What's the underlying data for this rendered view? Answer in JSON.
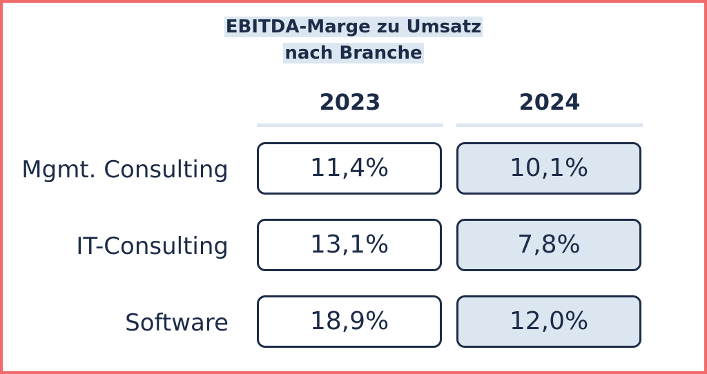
{
  "chart_data": {
    "type": "table",
    "title_lines": [
      "EBITDA-Marge zu Umsatz",
      "nach Branche"
    ],
    "columns": [
      "2023",
      "2024"
    ],
    "rows": [
      {
        "label": "Mgmt. Consulting",
        "cells": [
          "11,4%",
          "10,1%"
        ],
        "values": [
          11.4,
          10.1
        ]
      },
      {
        "label": "IT-Consulting",
        "cells": [
          "13,1%",
          "7,8%"
        ],
        "values": [
          13.1,
          7.8
        ]
      },
      {
        "label": "Software",
        "cells": [
          "18,9%",
          "12,0%"
        ],
        "values": [
          18.9,
          12.0
        ]
      }
    ],
    "unit": "%",
    "colors": {
      "text": "#1c2b47",
      "highlight": "#dbe6f0",
      "frame": "#f06a6a"
    }
  }
}
